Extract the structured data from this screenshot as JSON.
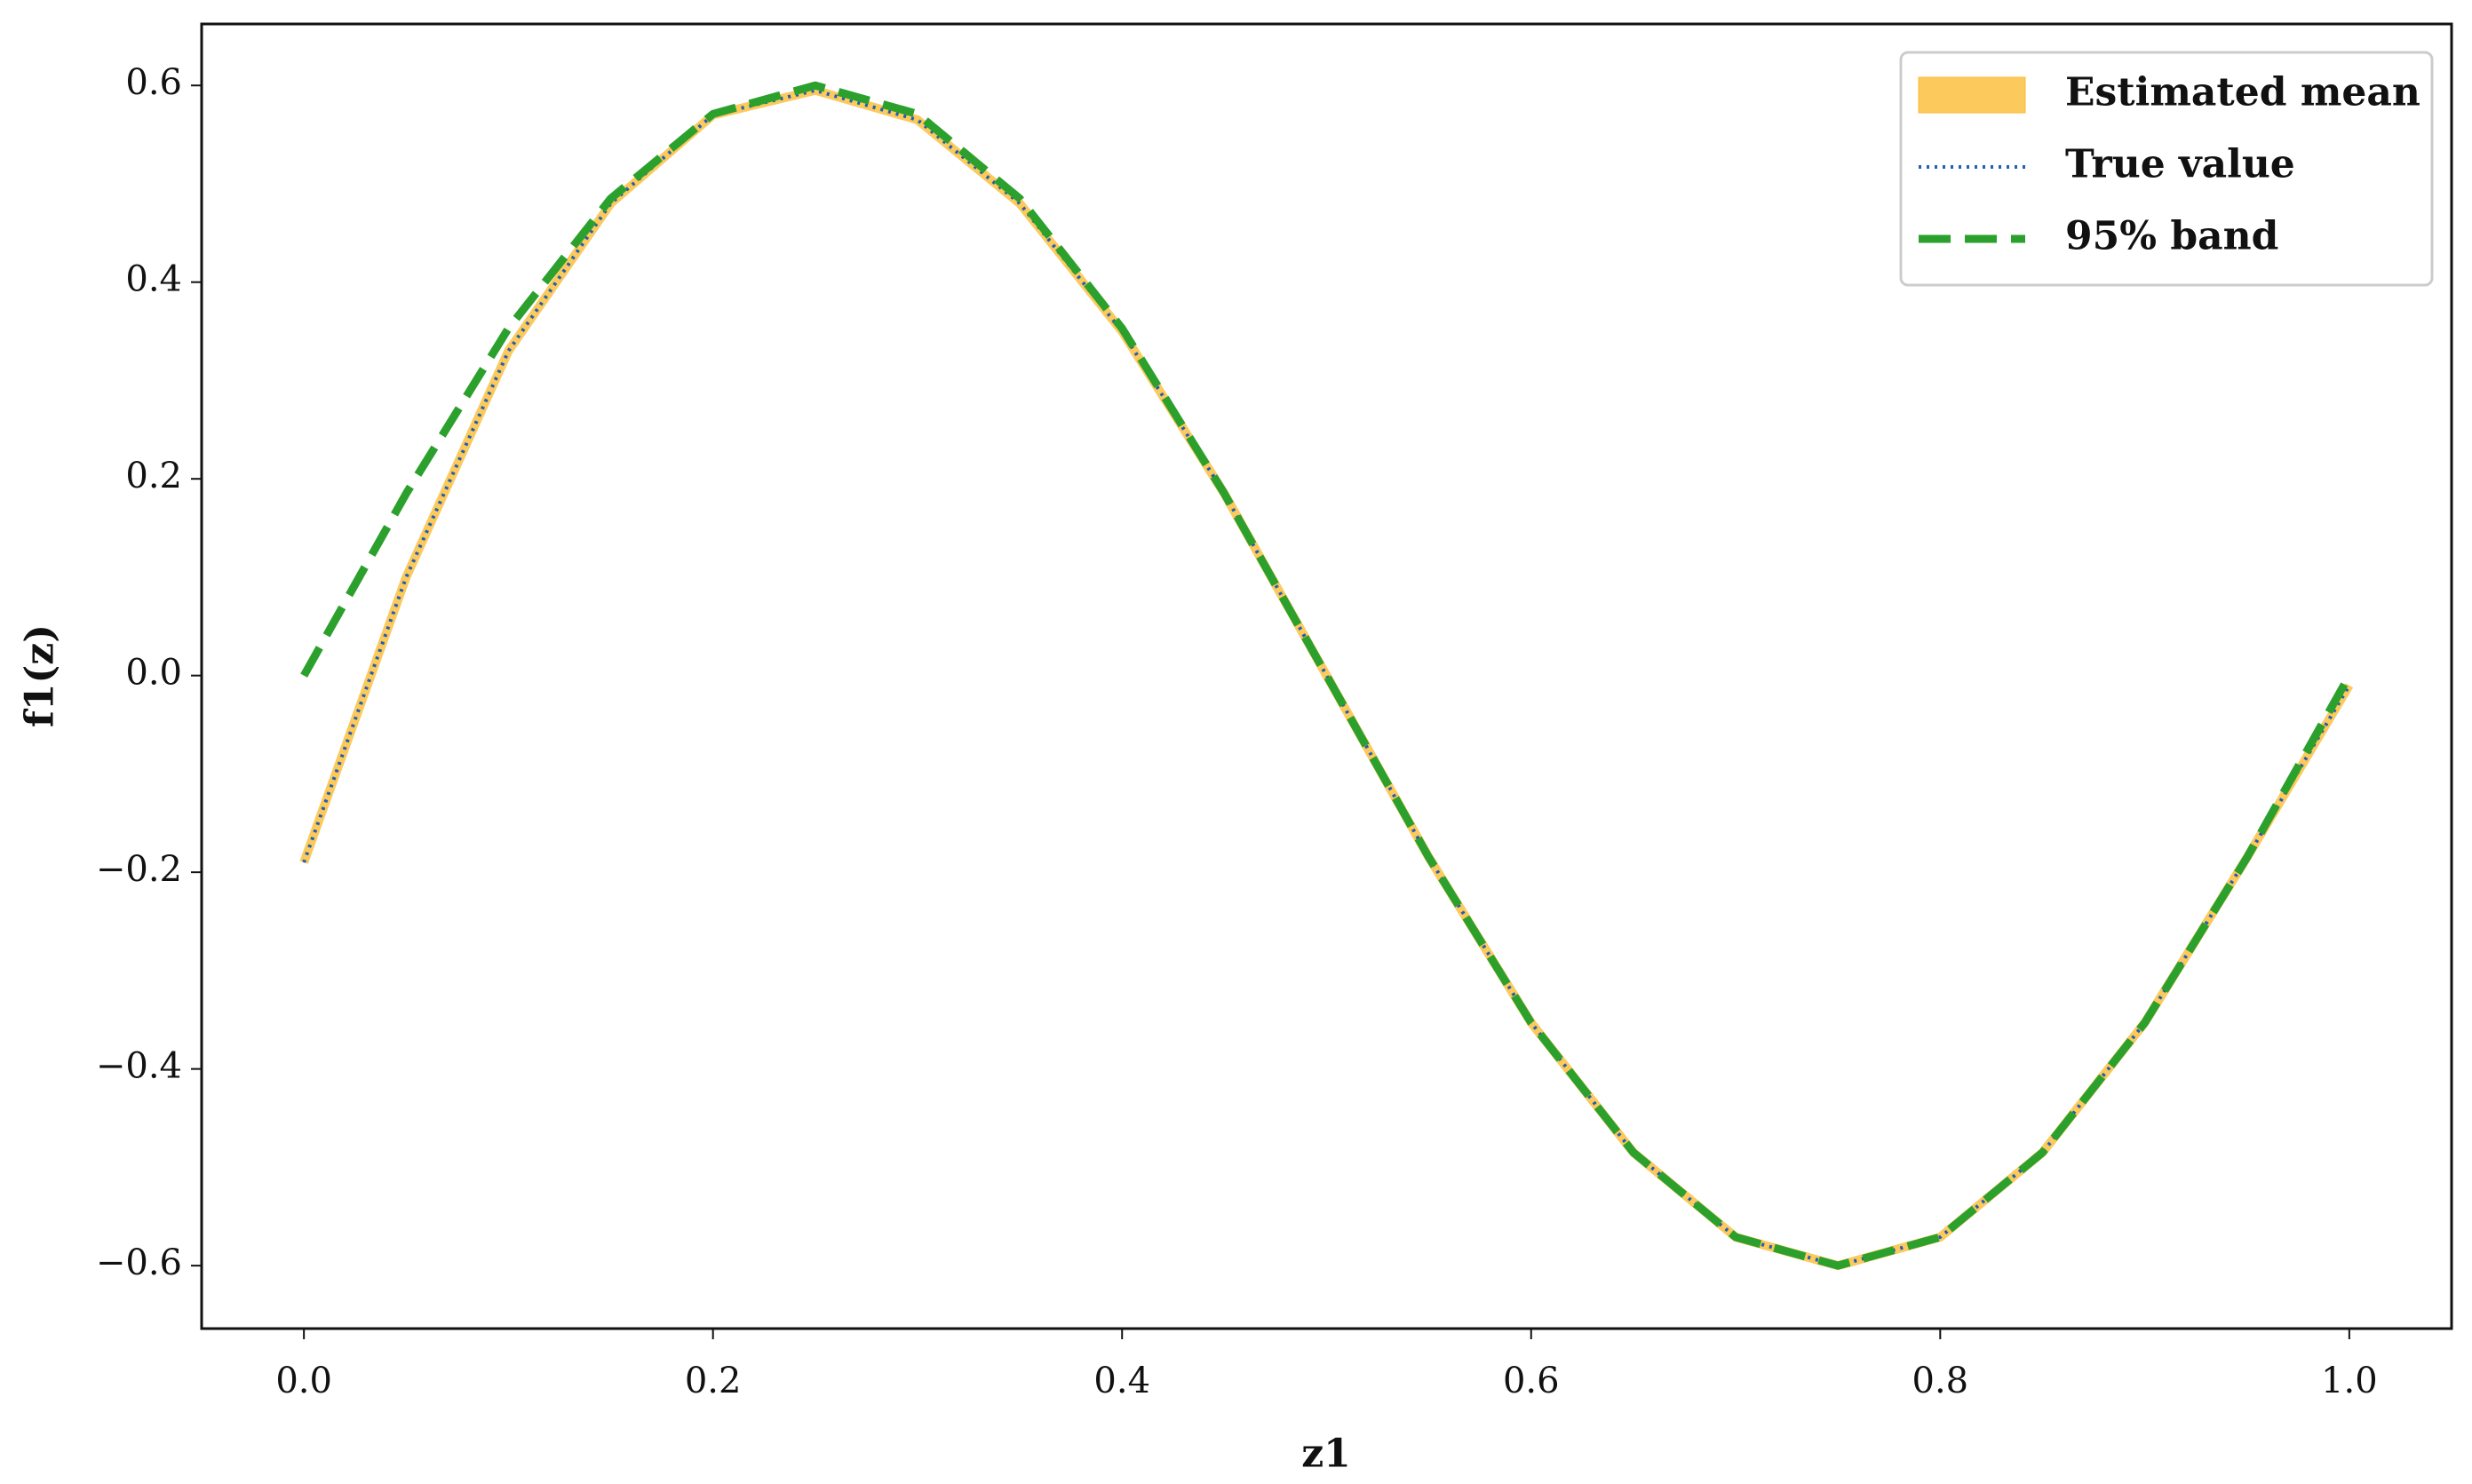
{
  "chart_data": {
    "type": "line",
    "x_label": "z1",
    "y_label": "f1(z)",
    "x": [
      0,
      0.05,
      0.1,
      0.15,
      0.2,
      0.25,
      0.3,
      0.35,
      0.4,
      0.45,
      0.5,
      0.55,
      0.6,
      0.65,
      0.7,
      0.75,
      0.8,
      0.85,
      0.9,
      0.95,
      1.0
    ],
    "series": [
      {
        "name": "Estimated mean",
        "color": "#fbbc33",
        "linestyle": "band",
        "values": [
          -0.19,
          0.1,
          0.33,
          0.48,
          0.57,
          0.595,
          0.565,
          0.48,
          0.35,
          0.185,
          0.0,
          -0.185,
          -0.353,
          -0.485,
          -0.571,
          -0.6,
          -0.571,
          -0.485,
          -0.353,
          -0.185,
          -0.01
        ]
      },
      {
        "name": "True value",
        "color": "#1f5fb4",
        "linestyle": "dotted",
        "values": [
          -0.19,
          0.1,
          0.33,
          0.48,
          0.57,
          0.595,
          0.565,
          0.48,
          0.35,
          0.185,
          0.0,
          -0.185,
          -0.353,
          -0.485,
          -0.571,
          -0.6,
          -0.571,
          -0.485,
          -0.353,
          -0.185,
          -0.01
        ]
      },
      {
        "name": "95% band",
        "color": "#2ca02c",
        "linestyle": "dashed",
        "values": [
          0.0,
          0.185,
          0.353,
          0.485,
          0.571,
          0.6,
          0.571,
          0.485,
          0.353,
          0.185,
          0.0,
          -0.185,
          -0.353,
          -0.485,
          -0.571,
          -0.6,
          -0.571,
          -0.485,
          -0.353,
          -0.185,
          0.0
        ]
      }
    ],
    "xlim": [
      -0.05,
      1.05
    ],
    "ylim": [
      -0.664,
      0.6625
    ],
    "xticks": [
      {
        "value": 0,
        "label": "0.0"
      },
      0.2,
      0.4,
      0.6,
      0.8,
      {
        "value": 1.0,
        "label": "1.0"
      }
    ],
    "yticks": [
      {
        "value": -0.6,
        "label": "−0.6"
      },
      {
        "value": -0.4,
        "label": "−0.4"
      },
      {
        "value": -0.2,
        "label": "−0.2"
      },
      {
        "value": 0,
        "label": "0.0"
      },
      0.2,
      0.4,
      0.6
    ],
    "grid": false,
    "legend": "upper right"
  }
}
